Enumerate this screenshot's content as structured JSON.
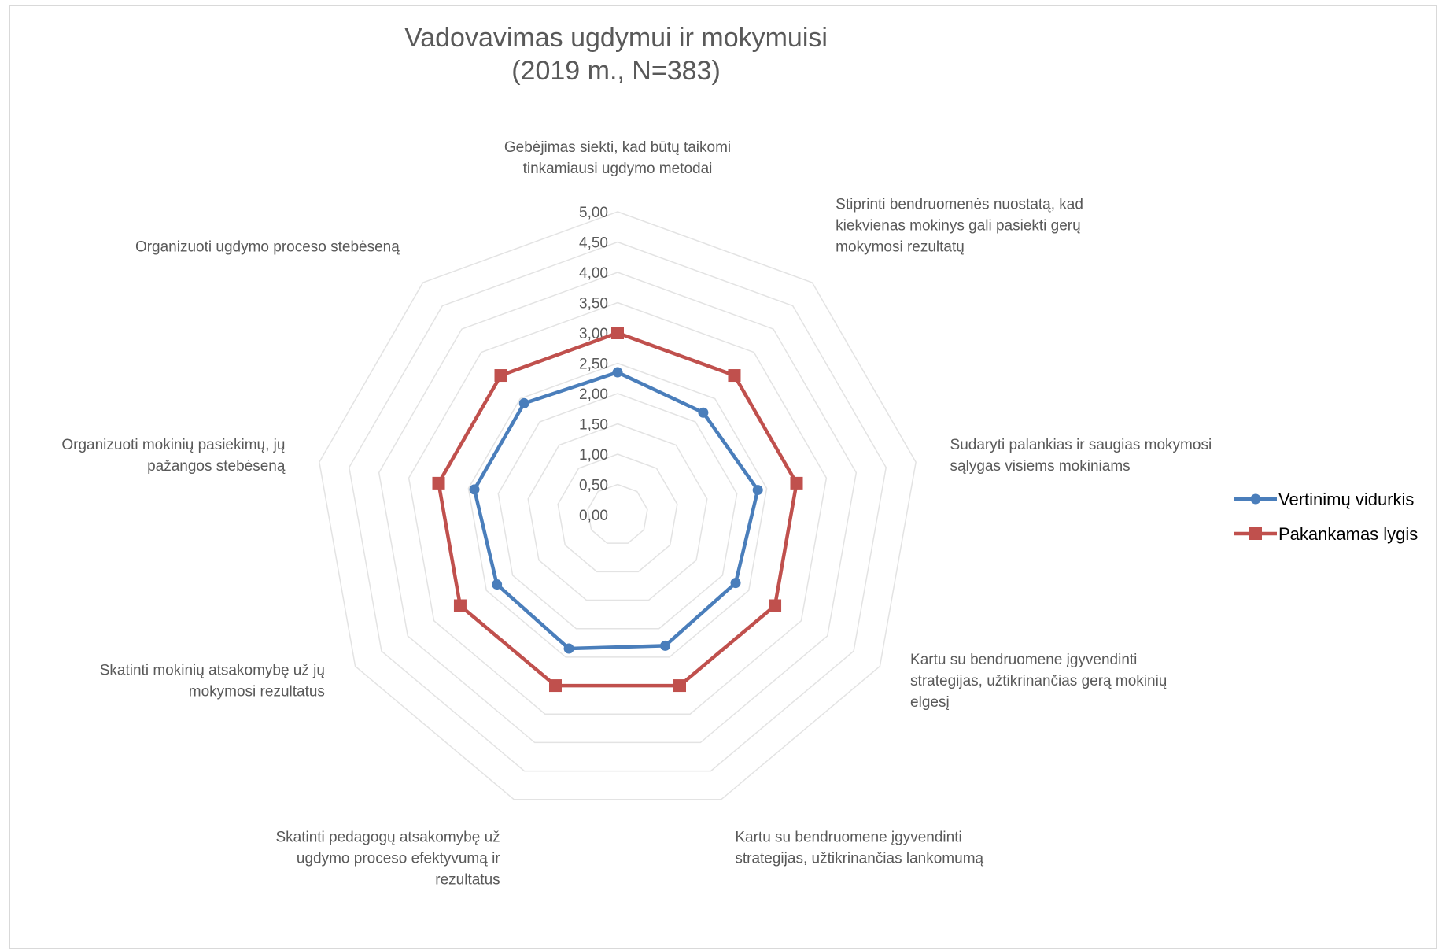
{
  "chart_data": {
    "type": "radar",
    "title": [
      "Vadovavimas ugdymui ir mokymuisi",
      "(2019 m., N=383)"
    ],
    "categories": [
      [
        "Gebėjimas siekti, kad būtų taikomi",
        "tinkamiausi ugdymo metodai"
      ],
      [
        "Stiprinti bendruomenės nuostatą, kad",
        "kiekvienas mokinys gali pasiekti gerų",
        "mokymosi rezultatų"
      ],
      [
        "Sudaryti palankias ir saugias mokymosi",
        "sąlygas visiems mokiniams"
      ],
      [
        "Kartu su bendruomene įgyvendinti",
        "strategijas, užtikrinančias gerą mokinių",
        "elgesį"
      ],
      [
        "Kartu su bendruomene įgyvendinti",
        "strategijas, užtikrinančias lankomumą"
      ],
      [
        "Skatinti pedagogų atsakomybę už",
        "ugdymo proceso efektyvumą ir",
        "rezultatus"
      ],
      [
        "Skatinti mokinių atsakomybę už jų",
        "mokymosi rezultatus"
      ],
      [
        "Organizuoti mokinių pasiekimų, jų",
        "pažangos stebėseną"
      ],
      [
        "Organizuoti ugdymo proceso stebėseną"
      ]
    ],
    "axis_ticks": [
      "0,00",
      "0,50",
      "1,00",
      "1,50",
      "2,00",
      "2,50",
      "3,00",
      "3,50",
      "4,00",
      "4,50",
      "5,00"
    ],
    "rlim": [
      0,
      5
    ],
    "series": [
      {
        "name": "Vertinimų vidurkis",
        "color": "#4a7ebb",
        "marker": "circle",
        "values": [
          2.35,
          2.2,
          2.35,
          2.25,
          2.3,
          2.35,
          2.3,
          2.4,
          2.4
        ]
      },
      {
        "name": "Pakankamas lygis",
        "color": "#c0504d",
        "marker": "square",
        "values": [
          3.0,
          3.0,
          3.0,
          3.0,
          3.0,
          3.0,
          3.0,
          3.0,
          3.0
        ]
      }
    ],
    "grid": true,
    "legend": "right"
  }
}
